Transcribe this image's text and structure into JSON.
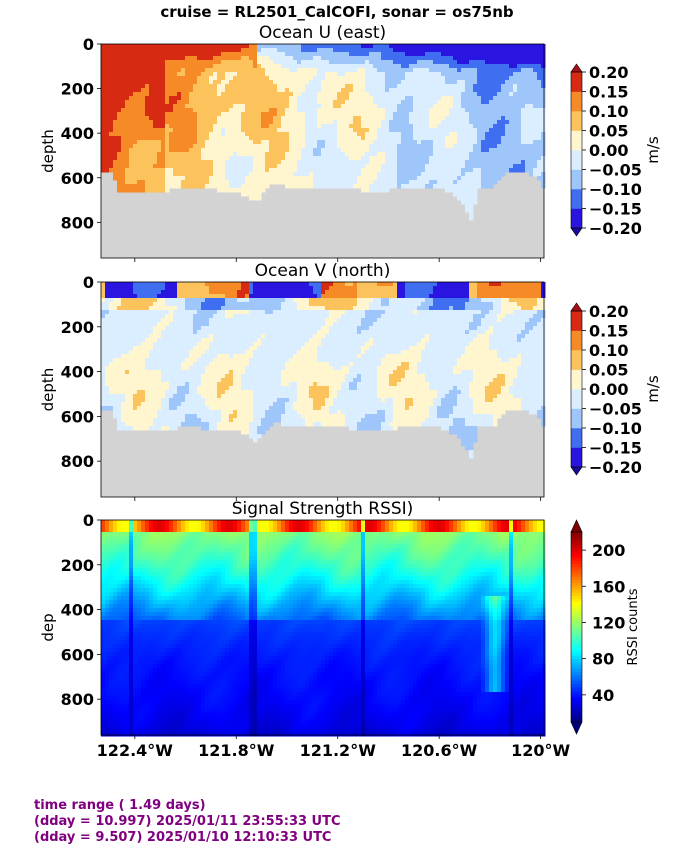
{
  "suptitle": "cruise = RL2501_CalCOFI,  sonar = os75nb",
  "chart_data": [
    {
      "type": "heatmap",
      "title": "Ocean U (east)",
      "ylabel": "depth",
      "ylim": [
        960,
        0
      ],
      "yticks": [
        "0",
        "200",
        "400",
        "600",
        "800"
      ],
      "xlim": [
        -122.6,
        -119.98
      ],
      "colorbar": {
        "label": "m/s",
        "vmin": -0.2,
        "vmax": 0.2,
        "ticks": [
          "0.20",
          "0.15",
          "0.10",
          "0.05",
          "0.00",
          "−0.05",
          "−0.10",
          "−0.15",
          "−0.20"
        ],
        "colors": [
          "#2a14e0",
          "#3f6ef0",
          "#9ec6fa",
          "#dbeeff",
          "#fff6cf",
          "#fcc25c",
          "#f58a26",
          "#d62a12"
        ]
      },
      "bottom_profile": {
        "lon": [
          -122.6,
          -122.55,
          -122.5,
          -122.4,
          -122.3,
          -122.1,
          -121.8,
          -121.7,
          -121.6,
          -121.4,
          -121.2,
          -121.0,
          -120.8,
          -120.6,
          -120.5,
          -120.42,
          -120.38,
          -120.3,
          -120.2,
          -120.1,
          -120.02,
          -119.98
        ],
        "depth": [
          570,
          560,
          660,
          660,
          650,
          640,
          650,
          700,
          620,
          640,
          640,
          650,
          640,
          640,
          680,
          780,
          640,
          640,
          560,
          560,
          600,
          660
        ]
      }
    },
    {
      "type": "heatmap",
      "title": "Ocean V (north)",
      "ylabel": "depth",
      "ylim": [
        960,
        0
      ],
      "yticks": [
        "0",
        "200",
        "400",
        "600",
        "800"
      ],
      "xlim": [
        -122.6,
        -119.98
      ],
      "colorbar": {
        "label": "m/s",
        "vmin": -0.2,
        "vmax": 0.2,
        "ticks": [
          "0.20",
          "0.15",
          "0.10",
          "0.05",
          "0.00",
          "−0.05",
          "−0.10",
          "−0.15",
          "−0.20"
        ],
        "colors": [
          "#2a14e0",
          "#3f6ef0",
          "#9ec6fa",
          "#dbeeff",
          "#fff6cf",
          "#fcc25c",
          "#f58a26",
          "#d62a12"
        ]
      },
      "bottom_profile": {
        "lon": [
          -122.6,
          -122.55,
          -122.5,
          -122.4,
          -122.3,
          -122.1,
          -121.8,
          -121.7,
          -121.6,
          -121.4,
          -121.2,
          -121.0,
          -120.8,
          -120.6,
          -120.5,
          -120.42,
          -120.38,
          -120.3,
          -120.2,
          -120.1,
          -120.02,
          -119.98
        ],
        "depth": [
          570,
          560,
          660,
          660,
          650,
          640,
          650,
          700,
          620,
          640,
          640,
          650,
          640,
          640,
          680,
          780,
          640,
          640,
          560,
          560,
          600,
          660
        ]
      }
    },
    {
      "type": "heatmap",
      "title": "Signal Strength RSSI)",
      "ylabel": "dep",
      "ylim": [
        960,
        0
      ],
      "yticks": [
        "0",
        "200",
        "400",
        "600",
        "800"
      ],
      "xlim": [
        -122.6,
        -119.98
      ],
      "xticks": [
        "122.4°W",
        "121.8°W",
        "121.2°W",
        "120.6°W",
        "120°W"
      ],
      "xtick_values": [
        -122.4,
        -121.8,
        -121.2,
        -120.6,
        -120.0
      ],
      "colorbar": {
        "label": "RSSI counts",
        "vmin": 10,
        "vmax": 220,
        "ticks": [
          "200",
          "160",
          "120",
          "80",
          "40"
        ],
        "tick_values": [
          200,
          160,
          120,
          80,
          40
        ]
      }
    }
  ],
  "footer": {
    "line1": "time range ( 1.49 days)",
    "line2": "(dday = 10.997) 2025/01/11 23:55:33 UTC",
    "line3": "(dday = 9.507) 2025/01/10 12:10:33 UTC"
  }
}
